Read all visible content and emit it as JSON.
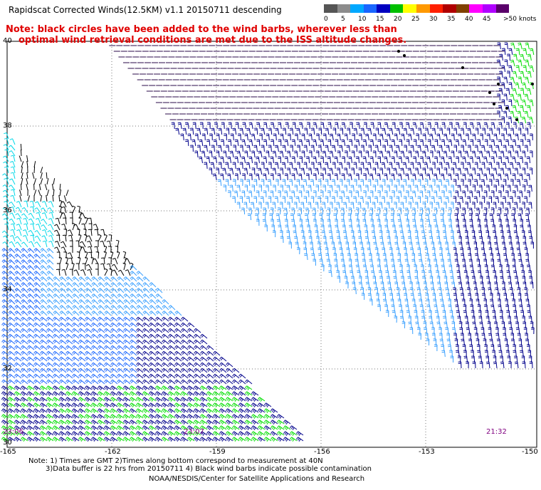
{
  "title": "Rapidscat Corrected Winds(12.5KM) v1.1 20150711 descending",
  "note_line1": "Note: black circles have been added to the wind barbs, wherever less than",
  "note_line2": "optimal wind retrieval conditions are met due to the ISS altitude changes.",
  "legend": {
    "colors": [
      "#555555",
      "#8c8c8c",
      "#00a8ff",
      "#1a66ff",
      "#0000c0",
      "#00c000",
      "#ffff00",
      "#ff9900",
      "#ff2000",
      "#b00000",
      "#804000",
      "#ff00ff",
      "#b000ff",
      "#5a006a"
    ],
    "labels": [
      "0",
      "5",
      "10",
      "15",
      "20",
      "25",
      "30",
      "35",
      "40",
      "45",
      ">50 knots"
    ]
  },
  "lat_labels": [
    "40",
    "38",
    "36",
    "34",
    "32",
    "30"
  ],
  "lon_labels": [
    "-165",
    "-162",
    "-159",
    "-156",
    "-153",
    "-150"
  ],
  "times": [
    "23:06",
    "23:07",
    "21:32"
  ],
  "footer": {
    "line1": "Note: 1) Times are GMT 2)Times along bottom correspond to measurement at 40N",
    "line2": "3)Data buffer is 22 hrs from 20150711 4) Black wind barbs indicate possible contamination",
    "credit": "NOAA/NESDIS/Center for Satellite Applications and Research"
  },
  "colors": {
    "dark": "#2a0a4a",
    "navy": "#00008b",
    "blue": "#1a66ff",
    "lightblue": "#3aa0ff",
    "cyan": "#00d8e8",
    "green": "#00dd00",
    "black": "#000000",
    "note_red": "#e00000",
    "time_purple": "#800080"
  }
}
